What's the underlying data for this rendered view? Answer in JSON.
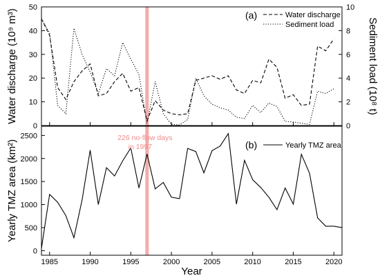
{
  "chart_data": [
    {
      "panel": "(a)",
      "type": "line",
      "xlabel": "",
      "ylabel": "Water discharge (10⁹ m³)",
      "ylabel_right": "Sediment load (10⁸ t)",
      "xlim": [
        1984,
        2021
      ],
      "ylim": [
        0,
        50
      ],
      "ylim_right": [
        0,
        10
      ],
      "yticks": [
        0,
        10,
        20,
        30,
        40,
        50
      ],
      "yticks_right": [
        0,
        2,
        4,
        6,
        8,
        10
      ],
      "legend_position": "top-right",
      "series": [
        {
          "name": "Water discharge",
          "axis": "left",
          "style": "dashed",
          "x": [
            1984,
            1985,
            1986,
            1987,
            1988,
            1989,
            1990,
            1991,
            1992,
            1993,
            1994,
            1995,
            1996,
            1997,
            1998,
            1999,
            2000,
            2001,
            2002,
            2003,
            2004,
            2005,
            2006,
            2007,
            2008,
            2009,
            2010,
            2011,
            2012,
            2013,
            2014,
            2015,
            2016,
            2017,
            2018,
            2019,
            2020
          ],
          "values": [
            45,
            38,
            16,
            11,
            18.5,
            23,
            26,
            12.5,
            13.5,
            18.5,
            22,
            14.5,
            16,
            2,
            10.5,
            6.5,
            5,
            4.5,
            5,
            19,
            20,
            21,
            19.5,
            21,
            15,
            13.5,
            19,
            18,
            28,
            24.5,
            11.5,
            13,
            8.5,
            9,
            33.5,
            31.5,
            36.5
          ]
        },
        {
          "name": "Sediment load",
          "axis": "right",
          "style": "dotted",
          "x": [
            1984,
            1985,
            1986,
            1987,
            1988,
            1989,
            1990,
            1991,
            1992,
            1993,
            1994,
            1995,
            1996,
            1997,
            1998,
            1999,
            2000,
            2001,
            2002,
            2003,
            2004,
            2005,
            2006,
            2007,
            2008,
            2009,
            2010,
            2011,
            2012,
            2013,
            2014,
            2015,
            2016,
            2017,
            2018,
            2019,
            2020
          ],
          "values": [
            9,
            7.8,
            1.7,
            1.0,
            8.2,
            6.0,
            4.5,
            2.7,
            4.8,
            4.2,
            7.0,
            5.6,
            4.3,
            0.2,
            3.7,
            1.0,
            0.1,
            0.05,
            0.5,
            4.0,
            2.5,
            1.8,
            1.5,
            1.3,
            0.7,
            0.6,
            1.7,
            1.1,
            1.9,
            1.6,
            0.35,
            0.3,
            0.2,
            0.1,
            2.9,
            2.7,
            3.1
          ]
        }
      ]
    },
    {
      "panel": "(b)",
      "type": "line",
      "xlabel": "Year",
      "ylabel": "Yearly TMZ area (km²)",
      "xlim": [
        1984,
        2021
      ],
      "ylim": [
        -100,
        2700
      ],
      "xticks": [
        1985,
        1990,
        1995,
        2000,
        2005,
        2010,
        2015,
        2020
      ],
      "yticks": [
        0,
        500,
        1000,
        1500,
        2000,
        2500
      ],
      "legend_position": "top-right",
      "series": [
        {
          "name": "Yearly TMZ area",
          "style": "solid",
          "x": [
            1984,
            1985,
            1986,
            1987,
            1988,
            1989,
            1990,
            1991,
            1992,
            1993,
            1994,
            1995,
            1996,
            1997,
            1998,
            1999,
            2000,
            2001,
            2002,
            2003,
            2004,
            2005,
            2006,
            2007,
            2008,
            2009,
            2010,
            2011,
            2012,
            2013,
            2014,
            2015,
            2016,
            2017,
            2018,
            2019,
            2020,
            2021
          ],
          "values": [
            50,
            1220,
            1050,
            760,
            280,
            1100,
            2180,
            1000,
            1800,
            1620,
            1950,
            2230,
            1360,
            2100,
            1340,
            1480,
            1160,
            1130,
            2220,
            2150,
            1690,
            2170,
            2270,
            2540,
            1010,
            1960,
            1540,
            1370,
            1160,
            890,
            1360,
            1010,
            2090,
            1680,
            710,
            530,
            530,
            500
          ]
        }
      ]
    }
  ],
  "annotation": {
    "year": 1997,
    "line1": "226  no-flow days",
    "line2": "in 1997",
    "highlight_color": "#f4a3a3"
  },
  "colors": {
    "line": "#000000",
    "highlight": "#f4a3a3",
    "annotation_text": "#f08a8a"
  }
}
